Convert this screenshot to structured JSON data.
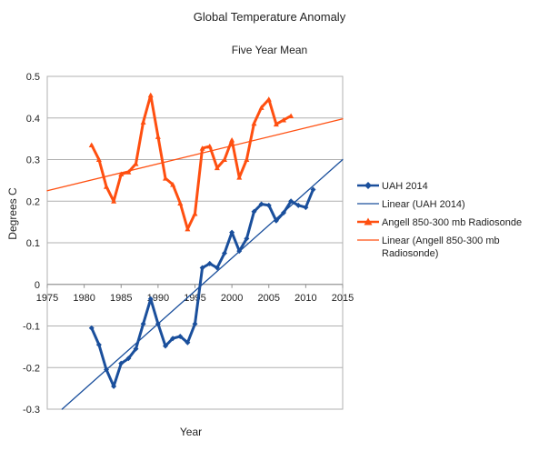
{
  "chart_data": {
    "type": "line",
    "title": "Global Temperature Anomaly",
    "subtitle": "Five Year Mean",
    "xlabel": "Year",
    "ylabel": "Degrees C",
    "xlim": [
      1975,
      2015
    ],
    "ylim": [
      -0.3,
      0.5
    ],
    "x_ticks": [
      1975,
      1980,
      1985,
      1990,
      1995,
      2000,
      2005,
      2010,
      2015
    ],
    "y_ticks": [
      -0.3,
      -0.2,
      -0.1,
      0,
      0.1,
      0.2,
      0.3,
      0.4,
      0.5
    ],
    "grid": "horizontal",
    "legend_position": "right",
    "series": [
      {
        "name": "UAH 2014",
        "color": "#1a4f9c",
        "marker": "diamond",
        "x": [
          1981,
          1982,
          1983,
          1984,
          1985,
          1986,
          1987,
          1988,
          1989,
          1990,
          1991,
          1992,
          1993,
          1994,
          1995,
          1996,
          1997,
          1998,
          1999,
          2000,
          2001,
          2002,
          2003,
          2004,
          2005,
          2006,
          2007,
          2008,
          2009,
          2010,
          2011
        ],
        "y": [
          -0.105,
          -0.145,
          -0.205,
          -0.245,
          -0.19,
          -0.178,
          -0.155,
          -0.095,
          -0.035,
          -0.095,
          -0.148,
          -0.13,
          -0.125,
          -0.14,
          -0.095,
          0.04,
          0.05,
          0.04,
          0.075,
          0.125,
          0.08,
          0.11,
          0.175,
          0.193,
          0.19,
          0.153,
          0.172,
          0.2,
          0.19,
          0.185,
          0.228
        ]
      },
      {
        "name": "Linear (UAH 2014)",
        "color": "#1a4f9c",
        "trendline": true,
        "x": [
          1977,
          2015
        ],
        "y": [
          -0.3,
          0.3
        ]
      },
      {
        "name": "Angell 850-300 mb Radiosonde",
        "color": "#ff4f10",
        "marker": "triangle",
        "x": [
          1981,
          1982,
          1983,
          1984,
          1985,
          1986,
          1987,
          1988,
          1989,
          1990,
          1991,
          1992,
          1993,
          1994,
          1995,
          1996,
          1997,
          1998,
          1999,
          2000,
          2001,
          2002,
          2003,
          2004,
          2005,
          2006,
          2007,
          2008
        ],
        "y": [
          0.335,
          0.3,
          0.235,
          0.2,
          0.265,
          0.27,
          0.29,
          0.39,
          0.455,
          0.355,
          0.255,
          0.24,
          0.195,
          0.133,
          0.17,
          0.327,
          0.332,
          0.28,
          0.3,
          0.347,
          0.257,
          0.3,
          0.387,
          0.425,
          0.445,
          0.385,
          0.395,
          0.405
        ]
      },
      {
        "name": "Linear (Angell 850-300 mb Radiosonde)",
        "color": "#ff4f10",
        "trendline": true,
        "x": [
          1975,
          2015
        ],
        "y": [
          0.225,
          0.398
        ]
      }
    ]
  }
}
